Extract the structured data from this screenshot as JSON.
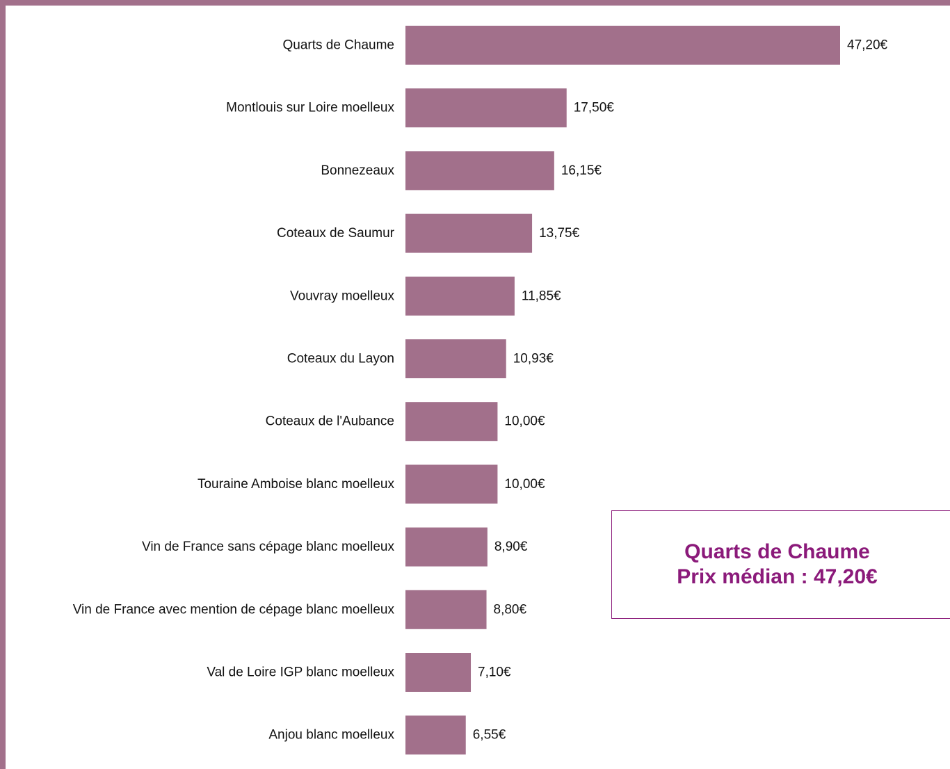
{
  "chart_data": {
    "type": "bar",
    "orientation": "horizontal",
    "bar_color": "#a2708b",
    "frame_color": "#a2708b",
    "categories": [
      "Quarts de Chaume",
      "Montlouis sur Loire moelleux",
      "Bonnezeaux",
      "Coteaux de Saumur",
      "Vouvray moelleux",
      "Coteaux du Layon",
      "Coteaux de l'Aubance",
      "Touraine Amboise blanc moelleux",
      "Vin de France sans cépage blanc moelleux",
      "Vin de France avec mention de cépage blanc moelleux",
      "Val de Loire IGP blanc moelleux",
      "Anjou blanc moelleux"
    ],
    "values": [
      47.2,
      17.5,
      16.15,
      13.75,
      11.85,
      10.93,
      10.0,
      10.0,
      8.9,
      8.8,
      7.1,
      6.55
    ],
    "value_labels": [
      "47,20€",
      "17,50€",
      "16,15€",
      "13,75€",
      "11,85€",
      "10,93€",
      "10,00€",
      "10,00€",
      "8,90€",
      "8,80€",
      "7,10€",
      "6,55€"
    ],
    "xlim": [
      0,
      47.2
    ],
    "grid": false,
    "legend": "none"
  },
  "callout": {
    "line1": "Quarts de Chaume",
    "line2": "Prix médian : 47,20€",
    "color": "#8b1a7a"
  }
}
